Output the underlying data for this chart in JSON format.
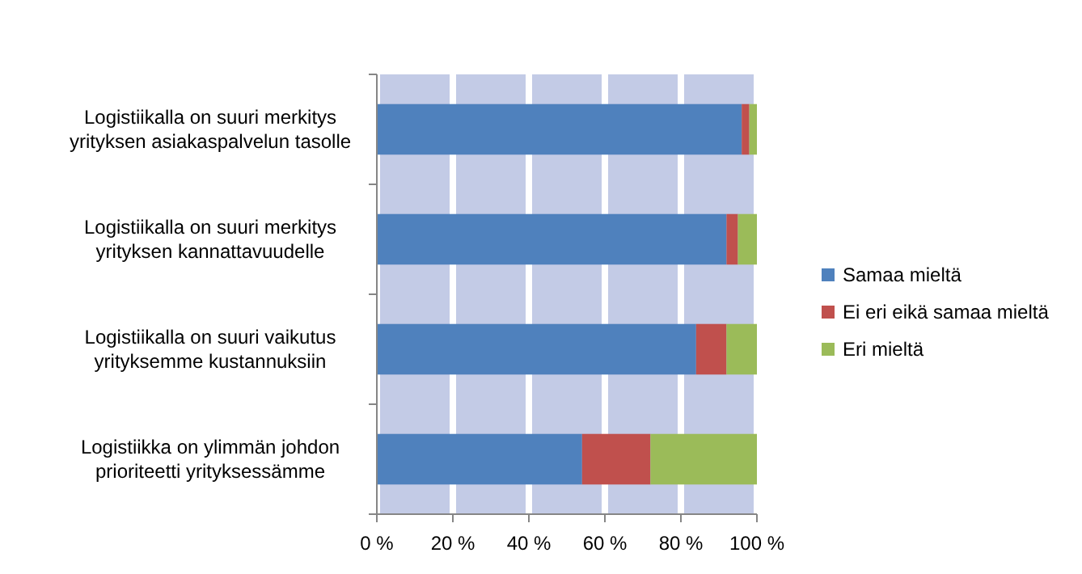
{
  "chart_data": {
    "type": "bar",
    "orientation": "horizontal",
    "stacked": true,
    "categories": [
      "Logistiikalla on suuri merkitys yrityksen asiakaspalvelun tasolle",
      "Logistiikalla on suuri merkitys yrityksen kannattavuudelle",
      "Logistiikalla on suuri vaikutus yrityksemme kustannuksiin",
      "Logistiikka on ylimmän johdon prioriteetti yrityksessämme"
    ],
    "series": [
      {
        "name": "Samaa mieltä",
        "color": "#4f81bd",
        "values": [
          96,
          92,
          84,
          54
        ]
      },
      {
        "name": "Ei eri eikä samaa mieltä",
        "color": "#c0504d",
        "values": [
          2,
          3,
          8,
          18
        ]
      },
      {
        "name": "Eri mieltä",
        "color": "#9bbb59",
        "values": [
          2,
          5,
          8,
          28
        ]
      }
    ],
    "xlim": [
      0,
      100
    ],
    "xticks": [
      {
        "value": 0,
        "label": "0 %"
      },
      {
        "value": 20,
        "label": "20 %"
      },
      {
        "value": 40,
        "label": "40 %"
      },
      {
        "value": 60,
        "label": "60 %"
      },
      {
        "value": 80,
        "label": "80 %"
      },
      {
        "value": 100,
        "label": "100 %"
      }
    ],
    "grid": "x",
    "legend": "right"
  }
}
